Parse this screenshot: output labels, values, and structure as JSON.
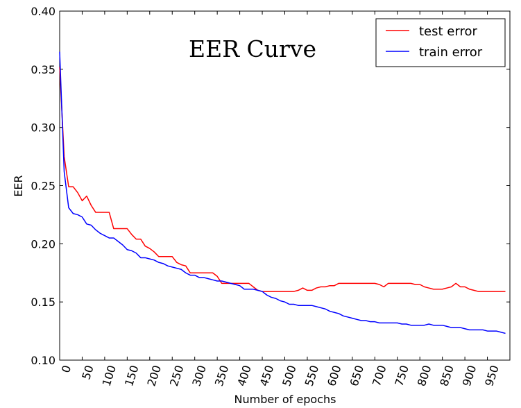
{
  "chart_data": {
    "type": "line",
    "title": "EER Curve",
    "xlabel": "Number of epochs",
    "ylabel": "EER",
    "xlim": [
      0,
      1000
    ],
    "ylim": [
      0.1,
      0.4
    ],
    "grid": false,
    "legend_position": "top-right",
    "x_ticks": [
      0,
      50,
      100,
      150,
      200,
      250,
      300,
      350,
      400,
      450,
      500,
      550,
      600,
      650,
      700,
      750,
      800,
      850,
      900,
      950
    ],
    "x_tick_labels": [
      "0",
      "50",
      "100",
      "150",
      "200",
      "250",
      "300",
      "350",
      "400",
      "450",
      "500",
      "550",
      "600",
      "650",
      "700",
      "750",
      "800",
      "850",
      "900",
      "950"
    ],
    "y_ticks": [
      0.1,
      0.15,
      0.2,
      0.25,
      0.3,
      0.35,
      0.4
    ],
    "y_tick_labels": [
      "0.10",
      "0.15",
      "0.20",
      "0.25",
      "0.30",
      "0.35",
      "0.40"
    ],
    "series": [
      {
        "name": "test error",
        "color": "#ff0000",
        "x": [
          0,
          10,
          20,
          30,
          40,
          50,
          60,
          70,
          80,
          90,
          100,
          110,
          120,
          130,
          140,
          150,
          160,
          170,
          180,
          190,
          200,
          210,
          220,
          230,
          240,
          250,
          260,
          270,
          280,
          290,
          300,
          310,
          320,
          330,
          340,
          350,
          360,
          370,
          380,
          390,
          400,
          410,
          420,
          430,
          440,
          450,
          460,
          470,
          480,
          490,
          500,
          510,
          520,
          530,
          540,
          550,
          560,
          570,
          580,
          590,
          600,
          610,
          620,
          630,
          640,
          650,
          660,
          670,
          680,
          690,
          700,
          710,
          720,
          730,
          740,
          750,
          760,
          770,
          780,
          790,
          800,
          810,
          820,
          830,
          840,
          850,
          860,
          870,
          880,
          890,
          900,
          910,
          920,
          930,
          940,
          950,
          960,
          970,
          980,
          990
        ],
        "values": [
          0.352,
          0.275,
          0.249,
          0.249,
          0.244,
          0.237,
          0.241,
          0.233,
          0.227,
          0.227,
          0.227,
          0.227,
          0.213,
          0.213,
          0.213,
          0.213,
          0.208,
          0.204,
          0.204,
          0.198,
          0.196,
          0.193,
          0.189,
          0.189,
          0.189,
          0.189,
          0.184,
          0.182,
          0.181,
          0.175,
          0.175,
          0.175,
          0.175,
          0.175,
          0.175,
          0.172,
          0.166,
          0.166,
          0.166,
          0.166,
          0.166,
          0.166,
          0.166,
          0.163,
          0.16,
          0.159,
          0.159,
          0.159,
          0.159,
          0.159,
          0.159,
          0.159,
          0.159,
          0.16,
          0.162,
          0.16,
          0.16,
          0.162,
          0.163,
          0.163,
          0.164,
          0.164,
          0.166,
          0.166,
          0.166,
          0.166,
          0.166,
          0.166,
          0.166,
          0.166,
          0.166,
          0.165,
          0.163,
          0.166,
          0.166,
          0.166,
          0.166,
          0.166,
          0.166,
          0.165,
          0.165,
          0.163,
          0.162,
          0.161,
          0.161,
          0.161,
          0.162,
          0.163,
          0.166,
          0.163,
          0.163,
          0.161,
          0.16,
          0.159,
          0.159,
          0.159,
          0.159,
          0.159,
          0.159,
          0.159
        ]
      },
      {
        "name": "train error",
        "color": "#0000ff",
        "x": [
          0,
          10,
          20,
          30,
          40,
          50,
          60,
          70,
          80,
          90,
          100,
          110,
          120,
          130,
          140,
          150,
          160,
          170,
          180,
          190,
          200,
          210,
          220,
          230,
          240,
          250,
          260,
          270,
          280,
          290,
          300,
          310,
          320,
          330,
          340,
          350,
          360,
          370,
          380,
          390,
          400,
          410,
          420,
          430,
          440,
          450,
          460,
          470,
          480,
          490,
          500,
          510,
          520,
          530,
          540,
          550,
          560,
          570,
          580,
          590,
          600,
          610,
          620,
          630,
          640,
          650,
          660,
          670,
          680,
          690,
          700,
          710,
          720,
          730,
          740,
          750,
          760,
          770,
          780,
          790,
          800,
          810,
          820,
          830,
          840,
          850,
          860,
          870,
          880,
          890,
          900,
          910,
          920,
          930,
          940,
          950,
          960,
          970,
          980,
          990
        ],
        "values": [
          0.365,
          0.262,
          0.231,
          0.226,
          0.225,
          0.223,
          0.217,
          0.216,
          0.212,
          0.209,
          0.207,
          0.205,
          0.205,
          0.202,
          0.199,
          0.195,
          0.194,
          0.192,
          0.188,
          0.188,
          0.187,
          0.186,
          0.184,
          0.183,
          0.181,
          0.18,
          0.179,
          0.178,
          0.175,
          0.173,
          0.173,
          0.171,
          0.171,
          0.17,
          0.169,
          0.168,
          0.168,
          0.167,
          0.166,
          0.165,
          0.164,
          0.161,
          0.161,
          0.161,
          0.16,
          0.159,
          0.156,
          0.154,
          0.153,
          0.151,
          0.15,
          0.148,
          0.148,
          0.147,
          0.147,
          0.147,
          0.147,
          0.146,
          0.145,
          0.144,
          0.142,
          0.141,
          0.14,
          0.138,
          0.137,
          0.136,
          0.135,
          0.134,
          0.134,
          0.133,
          0.133,
          0.132,
          0.132,
          0.132,
          0.132,
          0.132,
          0.131,
          0.131,
          0.13,
          0.13,
          0.13,
          0.13,
          0.131,
          0.13,
          0.13,
          0.13,
          0.129,
          0.128,
          0.128,
          0.128,
          0.127,
          0.126,
          0.126,
          0.126,
          0.126,
          0.125,
          0.125,
          0.125,
          0.124,
          0.123
        ]
      }
    ]
  }
}
